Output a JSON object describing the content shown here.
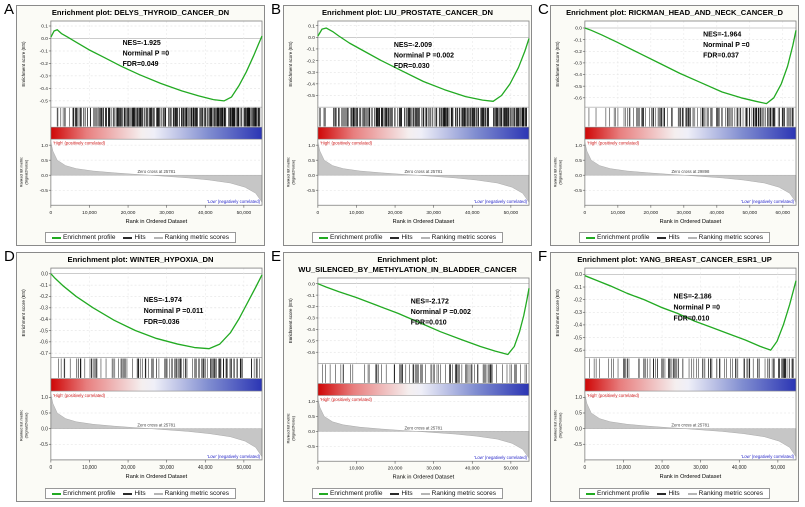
{
  "legend": {
    "items": [
      {
        "label": "Enrichment profile",
        "color": "#22aa22"
      },
      {
        "label": "Hits",
        "color": "#2a2a2a"
      },
      {
        "label": "Ranking metric scores",
        "color": "#b5b5b5"
      }
    ]
  },
  "shared": {
    "xlabel": "Rank in Ordered Dataset",
    "es_axis_label": "Enrichment score (ES)",
    "ranked_axis_label_line1": "Ranked list metric",
    "ranked_axis_label_line2": "(Signal2Noise)",
    "high_label": "'High' (positively correlated)",
    "low_label": "'Low' (negatively correlated)",
    "ranked_ylim": [
      1.2,
      -1.0
    ],
    "ranked_ticks": [
      1.0,
      0.5,
      0.0,
      -0.5
    ],
    "ranked_shape": [
      [
        0,
        1.1
      ],
      [
        0.01,
        0.8
      ],
      [
        0.03,
        0.5
      ],
      [
        0.07,
        0.32
      ],
      [
        0.12,
        0.22
      ],
      [
        0.2,
        0.14
      ],
      [
        0.3,
        0.08
      ],
      [
        0.4,
        0.03
      ],
      [
        0.47,
        0.0
      ],
      [
        0.55,
        -0.04
      ],
      [
        0.65,
        -0.09
      ],
      [
        0.75,
        -0.16
      ],
      [
        0.85,
        -0.26
      ],
      [
        0.92,
        -0.4
      ],
      [
        0.97,
        -0.6
      ],
      [
        1,
        -0.9
      ]
    ],
    "colors": {
      "es_curve": "#22aa22",
      "hits": "#111111",
      "ranked_fill": "#c6c6c6",
      "high_text": "#cc1111",
      "low_text": "#2424c8",
      "gradient_left": "#cf0606",
      "gradient_right": "#2b35b4"
    }
  },
  "chart_data": [
    {
      "type": "line",
      "panel_label": "A",
      "title": "Enrichment plot: DELYS_THYROID_CANCER_DN",
      "gene_set": "DELYS_THYROID_CANCER_DN",
      "nes": -1.925,
      "nominal_p": 0,
      "fdr": 0.049,
      "stats_lines": [
        "NES=-1.925",
        "Norminal P =0",
        "FDR=0.049"
      ],
      "zero_cross_label": "Zero cross at 25781",
      "zero_cross_rank": 25781,
      "zero_cross_frac": 0.47,
      "xlabel": "Rank in Ordered Dataset",
      "ylabel": "Enrichment score (ES)",
      "xmax": 54700,
      "x_ticks": [
        0,
        10000,
        20000,
        30000,
        40000,
        50000
      ],
      "x_tick_labels": [
        "0",
        "10,000",
        "20,000",
        "30,000",
        "40,000",
        "50,000"
      ],
      "es_ylim": [
        0.14,
        -0.55
      ],
      "es_ticks": [
        0.1,
        0.0,
        -0.1,
        -0.2,
        -0.3,
        -0.4,
        -0.5
      ],
      "es_curve": [
        [
          0,
          0.01
        ],
        [
          0.015,
          0.06
        ],
        [
          0.03,
          0.07
        ],
        [
          0.05,
          0.04
        ],
        [
          0.08,
          0.01
        ],
        [
          0.12,
          -0.03
        ],
        [
          0.18,
          -0.09
        ],
        [
          0.25,
          -0.15
        ],
        [
          0.33,
          -0.22
        ],
        [
          0.42,
          -0.29
        ],
        [
          0.52,
          -0.36
        ],
        [
          0.62,
          -0.42
        ],
        [
          0.7,
          -0.46
        ],
        [
          0.77,
          -0.49
        ],
        [
          0.82,
          -0.5
        ],
        [
          0.855,
          -0.47
        ],
        [
          0.89,
          -0.38
        ],
        [
          0.925,
          -0.27
        ],
        [
          0.96,
          -0.14
        ],
        [
          0.985,
          -0.04
        ],
        [
          1,
          0.02
        ]
      ],
      "hits_count": 380,
      "hits_seed": 1
    },
    {
      "type": "line",
      "panel_label": "B",
      "title": "Enrichment plot: LIU_PROSTATE_CANCER_DN",
      "gene_set": "LIU_PROSTATE_CANCER_DN",
      "nes": -2.009,
      "nominal_p": 0.002,
      "fdr": 0.03,
      "stats_lines": [
        "NES=-2.009",
        "Norminal P =0.002",
        "FDR=0.030"
      ],
      "zero_cross_label": "Zero cross at 25781",
      "zero_cross_rank": 25781,
      "zero_cross_frac": 0.47,
      "xlabel": "Rank in Ordered Dataset",
      "ylabel": "Enrichment score (ES)",
      "xmax": 54700,
      "x_ticks": [
        0,
        10000,
        20000,
        30000,
        40000,
        50000
      ],
      "x_tick_labels": [
        "0",
        "10,000",
        "20,000",
        "30,000",
        "40,000",
        "50,000"
      ],
      "es_ylim": [
        0.14,
        -0.6
      ],
      "es_ticks": [
        0.1,
        0.0,
        -0.1,
        -0.2,
        -0.3,
        -0.4,
        -0.5
      ],
      "es_curve": [
        [
          0,
          0.01
        ],
        [
          0.02,
          0.07
        ],
        [
          0.04,
          0.08
        ],
        [
          0.07,
          0.05
        ],
        [
          0.1,
          0.01
        ],
        [
          0.15,
          -0.05
        ],
        [
          0.22,
          -0.12
        ],
        [
          0.3,
          -0.2
        ],
        [
          0.4,
          -0.29
        ],
        [
          0.5,
          -0.38
        ],
        [
          0.6,
          -0.45
        ],
        [
          0.7,
          -0.51
        ],
        [
          0.78,
          -0.54
        ],
        [
          0.83,
          -0.55
        ],
        [
          0.87,
          -0.5
        ],
        [
          0.91,
          -0.4
        ],
        [
          0.95,
          -0.26
        ],
        [
          0.98,
          -0.12
        ],
        [
          1,
          -0.01
        ]
      ],
      "hits_count": 360,
      "hits_seed": 2
    },
    {
      "type": "line",
      "panel_label": "C",
      "title": "Enrichment plot: RICKMAN_HEAD_AND_NECK_CANCER_D",
      "gene_set": "RICKMAN_HEAD_AND_NECK_CANCER_D",
      "nes": -1.964,
      "nominal_p": 0,
      "fdr": 0.037,
      "stats_lines": [
        "NES=-1.964",
        "Norminal P =0",
        "FDR=0.037"
      ],
      "zero_cross_label": "Zero cross at 29898",
      "zero_cross_rank": 29898,
      "zero_cross_frac": 0.467,
      "xlabel": "Rank in Ordered Dataset",
      "ylabel": "Enrichment score (ES)",
      "xmax": 64000,
      "x_ticks": [
        0,
        10000,
        20000,
        30000,
        40000,
        50000,
        60000
      ],
      "x_tick_labels": [
        "0",
        "10,000",
        "20,000",
        "30,000",
        "40,000",
        "50,000",
        "60,000"
      ],
      "es_ylim": [
        0.06,
        -0.68
      ],
      "es_ticks": [
        0.0,
        -0.1,
        -0.2,
        -0.3,
        -0.4,
        -0.5,
        -0.6
      ],
      "es_curve": [
        [
          0,
          0.0
        ],
        [
          0.03,
          -0.02
        ],
        [
          0.08,
          -0.06
        ],
        [
          0.15,
          -0.12
        ],
        [
          0.25,
          -0.21
        ],
        [
          0.35,
          -0.3
        ],
        [
          0.45,
          -0.39
        ],
        [
          0.55,
          -0.47
        ],
        [
          0.65,
          -0.55
        ],
        [
          0.74,
          -0.6
        ],
        [
          0.81,
          -0.63
        ],
        [
          0.86,
          -0.65
        ],
        [
          0.895,
          -0.6
        ],
        [
          0.93,
          -0.48
        ],
        [
          0.96,
          -0.33
        ],
        [
          0.985,
          -0.15
        ],
        [
          1,
          -0.02
        ]
      ],
      "hits_count": 170,
      "hits_seed": 3
    },
    {
      "type": "line",
      "panel_label": "D",
      "title": "Enrichment plot: WINTER_HYPOXIA_DN",
      "gene_set": "WINTER_HYPOXIA_DN",
      "nes": -1.974,
      "nominal_p": 0.011,
      "fdr": 0.036,
      "stats_lines": [
        "NES=-1.974",
        "Norminal P =0.011",
        "FDR=0.036"
      ],
      "zero_cross_label": "Zero cross at 25781",
      "zero_cross_rank": 25781,
      "zero_cross_frac": 0.47,
      "xlabel": "Rank in Ordered Dataset",
      "ylabel": "Enrichment score (ES)",
      "xmax": 54700,
      "x_ticks": [
        0,
        10000,
        20000,
        30000,
        40000,
        50000
      ],
      "x_tick_labels": [
        "0",
        "10,000",
        "20,000",
        "30,000",
        "40,000",
        "50,000"
      ],
      "es_ylim": [
        0.05,
        -0.74
      ],
      "es_ticks": [
        0.0,
        -0.1,
        -0.2,
        -0.3,
        -0.4,
        -0.5,
        -0.6,
        -0.7
      ],
      "es_curve": [
        [
          0,
          0.0
        ],
        [
          0.02,
          -0.04
        ],
        [
          0.06,
          -0.11
        ],
        [
          0.12,
          -0.2
        ],
        [
          0.2,
          -0.3
        ],
        [
          0.3,
          -0.41
        ],
        [
          0.4,
          -0.5
        ],
        [
          0.5,
          -0.57
        ],
        [
          0.6,
          -0.62
        ],
        [
          0.68,
          -0.65
        ],
        [
          0.75,
          -0.66
        ],
        [
          0.8,
          -0.62
        ],
        [
          0.85,
          -0.52
        ],
        [
          0.89,
          -0.4
        ],
        [
          0.93,
          -0.26
        ],
        [
          0.97,
          -0.12
        ],
        [
          1,
          -0.01
        ]
      ],
      "hits_count": 130,
      "hits_seed": 4
    },
    {
      "type": "line",
      "panel_label": "E",
      "title": "Enrichment plot: WU_SILENCED_BY_METHYLATION_IN_BLADDER_CANCER",
      "gene_set": "WU_SILENCED_BY_METHYLATION_IN_BLADDER_CANCER",
      "nes": -2.172,
      "nominal_p": 0.002,
      "fdr": 0.01,
      "stats_lines": [
        "NES=-2.172",
        "Norminal P =0.002",
        "FDR=0.010"
      ],
      "zero_cross_label": "Zero cross at 25781",
      "zero_cross_rank": 25781,
      "zero_cross_frac": 0.47,
      "xlabel": "Rank in Ordered Dataset",
      "ylabel": "Enrichment score (ES)",
      "xmax": 54700,
      "x_ticks": [
        0,
        10000,
        20000,
        30000,
        40000,
        50000
      ],
      "x_tick_labels": [
        "0",
        "10,000",
        "20,000",
        "30,000",
        "40,000",
        "50,000"
      ],
      "es_ylim": [
        0.05,
        -0.7
      ],
      "es_ticks": [
        0.0,
        -0.1,
        -0.2,
        -0.3,
        -0.4,
        -0.5,
        -0.6
      ],
      "es_curve": [
        [
          0,
          0.0
        ],
        [
          0.04,
          -0.03
        ],
        [
          0.1,
          -0.07
        ],
        [
          0.18,
          -0.12
        ],
        [
          0.28,
          -0.19
        ],
        [
          0.38,
          -0.26
        ],
        [
          0.48,
          -0.34
        ],
        [
          0.58,
          -0.42
        ],
        [
          0.68,
          -0.49
        ],
        [
          0.77,
          -0.55
        ],
        [
          0.84,
          -0.59
        ],
        [
          0.9,
          -0.62
        ],
        [
          0.93,
          -0.55
        ],
        [
          0.955,
          -0.42
        ],
        [
          0.975,
          -0.28
        ],
        [
          0.99,
          -0.14
        ],
        [
          1,
          -0.04
        ]
      ],
      "hits_count": 95,
      "hits_seed": 5
    },
    {
      "type": "line",
      "panel_label": "F",
      "title": "Enrichment plot: YANG_BREAST_CANCER_ESR1_UP",
      "gene_set": "YANG_BREAST_CANCER_ESR1_UP",
      "nes": -2.186,
      "nominal_p": 0,
      "fdr": 0.01,
      "stats_lines": [
        "NES=-2.186",
        "Norminal P =0",
        "FDR=0.010"
      ],
      "zero_cross_label": "Zero cross at 25781",
      "zero_cross_rank": 25781,
      "zero_cross_frac": 0.47,
      "xlabel": "Rank in Ordered Dataset",
      "ylabel": "Enrichment score (ES)",
      "xmax": 54700,
      "x_ticks": [
        0,
        10000,
        20000,
        30000,
        40000,
        50000
      ],
      "x_tick_labels": [
        "0",
        "10,000",
        "20,000",
        "30,000",
        "40,000",
        "50,000"
      ],
      "es_ylim": [
        0.05,
        -0.66
      ],
      "es_ticks": [
        0.0,
        -0.1,
        -0.2,
        -0.3,
        -0.4,
        -0.5,
        -0.6
      ],
      "es_curve": [
        [
          0,
          -0.01
        ],
        [
          0.06,
          -0.05
        ],
        [
          0.12,
          -0.09
        ],
        [
          0.2,
          -0.15
        ],
        [
          0.28,
          -0.2
        ],
        [
          0.36,
          -0.26
        ],
        [
          0.44,
          -0.31
        ],
        [
          0.52,
          -0.37
        ],
        [
          0.6,
          -0.42
        ],
        [
          0.68,
          -0.47
        ],
        [
          0.76,
          -0.52
        ],
        [
          0.83,
          -0.57
        ],
        [
          0.88,
          -0.6
        ],
        [
          0.91,
          -0.53
        ],
        [
          0.94,
          -0.4
        ],
        [
          0.97,
          -0.24
        ],
        [
          1,
          -0.05
        ]
      ],
      "hits_count": 120,
      "hits_seed": 6
    }
  ]
}
